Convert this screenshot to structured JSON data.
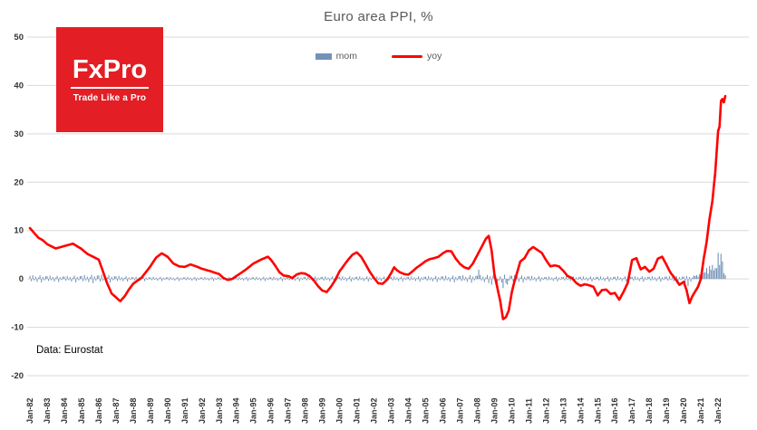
{
  "title": "Euro area PPI, %",
  "source_note": "Data: Eurostat",
  "logo": {
    "name": "FxPro",
    "tagline": "Trade Like a Pro",
    "bg_color": "#e31e24"
  },
  "legend": [
    {
      "label": "mom",
      "color": "#7292b8",
      "type": "bar"
    },
    {
      "label": "yoy",
      "color": "#ff0000",
      "type": "line"
    }
  ],
  "chart_data": {
    "type": "mixed-bar-line",
    "title": "Euro area PPI, %",
    "months_total": 486,
    "x_first_month": "Jan-82",
    "x_tick_every_months": 12,
    "x_tick_labels": [
      "Jan-82",
      "Jan-83",
      "Jan-84",
      "Jan-85",
      "Jan-86",
      "Jan-87",
      "Jan-88",
      "Jan-89",
      "Jan-90",
      "Jan-91",
      "Jan-92",
      "Jan-93",
      "Jan-94",
      "Jan-95",
      "Jan-96",
      "Jan-97",
      "Jan-98",
      "Jan-99",
      "Jan-00",
      "Jan-01",
      "Jan-02",
      "Jan-03",
      "Jan-04",
      "Jan-05",
      "Jan-06",
      "Jan-07",
      "Jan-08",
      "Jan-09",
      "Jan-10",
      "Jan-11",
      "Jan-12",
      "Jan-13",
      "Jan-14",
      "Jan-15",
      "Jan-16",
      "Jan-17",
      "Jan-18",
      "Jan-19",
      "Jan-20",
      "Jan-21",
      "Jan-22"
    ],
    "ylim": [
      -20,
      50
    ],
    "y_ticks": [
      50,
      40,
      30,
      20,
      10,
      0,
      -10,
      -20
    ],
    "grid_color": "#d9d9d9",
    "series": [
      {
        "name": "yoy",
        "type": "line",
        "color": "#ff0000",
        "anchors": [
          [
            0,
            10.5
          ],
          [
            3,
            9.5
          ],
          [
            6,
            8.5
          ],
          [
            9,
            8
          ],
          [
            12,
            7.2
          ],
          [
            18,
            6.3
          ],
          [
            24,
            6.8
          ],
          [
            30,
            7.3
          ],
          [
            36,
            6.2
          ],
          [
            40,
            5.2
          ],
          [
            44,
            4.6
          ],
          [
            48,
            4
          ],
          [
            51,
            1.5
          ],
          [
            54,
            -1
          ],
          [
            57,
            -3
          ],
          [
            60,
            -3.8
          ],
          [
            63,
            -4.6
          ],
          [
            66,
            -3.6
          ],
          [
            69,
            -2.2
          ],
          [
            72,
            -1
          ],
          [
            78,
            0.3
          ],
          [
            84,
            2.6
          ],
          [
            88,
            4.4
          ],
          [
            92,
            5.3
          ],
          [
            96,
            4.6
          ],
          [
            100,
            3.2
          ],
          [
            104,
            2.6
          ],
          [
            108,
            2.5
          ],
          [
            112,
            3
          ],
          [
            116,
            2.6
          ],
          [
            120,
            2.1
          ],
          [
            126,
            1.6
          ],
          [
            132,
            1
          ],
          [
            135,
            0.2
          ],
          [
            138,
            -0.2
          ],
          [
            141,
            0
          ],
          [
            144,
            0.6
          ],
          [
            150,
            1.8
          ],
          [
            156,
            3.2
          ],
          [
            162,
            4.1
          ],
          [
            166,
            4.6
          ],
          [
            168,
            4
          ],
          [
            171,
            2.8
          ],
          [
            174,
            1.4
          ],
          [
            177,
            0.7
          ],
          [
            180,
            0.6
          ],
          [
            183,
            0.2
          ],
          [
            186,
            0.9
          ],
          [
            189,
            1.2
          ],
          [
            192,
            1.1
          ],
          [
            195,
            0.6
          ],
          [
            198,
            -0.3
          ],
          [
            201,
            -1.5
          ],
          [
            204,
            -2.4
          ],
          [
            207,
            -2.7
          ],
          [
            210,
            -1.6
          ],
          [
            213,
            -0.2
          ],
          [
            216,
            1.6
          ],
          [
            219,
            2.8
          ],
          [
            222,
            4
          ],
          [
            225,
            5
          ],
          [
            228,
            5.5
          ],
          [
            231,
            4.6
          ],
          [
            234,
            3.1
          ],
          [
            237,
            1.5
          ],
          [
            240,
            0.2
          ],
          [
            243,
            -0.9
          ],
          [
            246,
            -1
          ],
          [
            249,
            -0.2
          ],
          [
            252,
            1.2
          ],
          [
            254,
            2.4
          ],
          [
            256,
            1.8
          ],
          [
            258,
            1.4
          ],
          [
            261,
            1
          ],
          [
            264,
            0.9
          ],
          [
            267,
            1.6
          ],
          [
            270,
            2.4
          ],
          [
            273,
            3
          ],
          [
            276,
            3.7
          ],
          [
            279,
            4.1
          ],
          [
            282,
            4.3
          ],
          [
            285,
            4.6
          ],
          [
            288,
            5.3
          ],
          [
            291,
            5.8
          ],
          [
            294,
            5.7
          ],
          [
            297,
            4.2
          ],
          [
            300,
            3.1
          ],
          [
            303,
            2.4
          ],
          [
            306,
            2.1
          ],
          [
            309,
            3.2
          ],
          [
            312,
            4.9
          ],
          [
            315,
            6.6
          ],
          [
            318,
            8.3
          ],
          [
            320,
            8.9
          ],
          [
            322,
            6
          ],
          [
            324,
            0.9
          ],
          [
            326,
            -1.8
          ],
          [
            328,
            -4.5
          ],
          [
            330,
            -8.3
          ],
          [
            332,
            -7.9
          ],
          [
            334,
            -6.5
          ],
          [
            336,
            -2.9
          ],
          [
            338,
            -0.5
          ],
          [
            340,
            1.5
          ],
          [
            342,
            3.6
          ],
          [
            345,
            4.3
          ],
          [
            348,
            5.9
          ],
          [
            351,
            6.6
          ],
          [
            354,
            6
          ],
          [
            357,
            5.4
          ],
          [
            360,
            3.9
          ],
          [
            363,
            2.6
          ],
          [
            366,
            2.8
          ],
          [
            369,
            2.6
          ],
          [
            372,
            1.7
          ],
          [
            375,
            0.6
          ],
          [
            378,
            0.2
          ],
          [
            381,
            -0.8
          ],
          [
            384,
            -1.4
          ],
          [
            387,
            -1.1
          ],
          [
            390,
            -1.3
          ],
          [
            393,
            -1.6
          ],
          [
            396,
            -3.4
          ],
          [
            399,
            -2.3
          ],
          [
            402,
            -2.2
          ],
          [
            405,
            -3.1
          ],
          [
            408,
            -2.9
          ],
          [
            411,
            -4.3
          ],
          [
            414,
            -2.7
          ],
          [
            417,
            -0.8
          ],
          [
            420,
            3.9
          ],
          [
            423,
            4.3
          ],
          [
            426,
            2
          ],
          [
            429,
            2.5
          ],
          [
            432,
            1.5
          ],
          [
            435,
            2.1
          ],
          [
            438,
            4.2
          ],
          [
            441,
            4.6
          ],
          [
            444,
            2.9
          ],
          [
            447,
            1.2
          ],
          [
            450,
            0.1
          ],
          [
            453,
            -1.2
          ],
          [
            456,
            -0.6
          ],
          [
            458,
            -2.3
          ],
          [
            460,
            -5
          ],
          [
            462,
            -3.6
          ],
          [
            464,
            -2.6
          ],
          [
            466,
            -1.6
          ],
          [
            468,
            0
          ],
          [
            470,
            4.3
          ],
          [
            472,
            7.6
          ],
          [
            474,
            12.4
          ],
          [
            476,
            16.1
          ],
          [
            478,
            21.9
          ],
          [
            480,
            30.6
          ],
          [
            481,
            31.5
          ],
          [
            482,
            36.8
          ],
          [
            483,
            37.2
          ],
          [
            484,
            36.5
          ],
          [
            485,
            37.8
          ]
        ]
      },
      {
        "name": "mom",
        "type": "bar",
        "color": "#7292b8",
        "pattern12": [
          0.4,
          -0.3,
          0.5,
          -0.2,
          0.3,
          -0.4,
          0.2,
          0.5,
          -0.5,
          0.3,
          -0.2,
          0.4
        ],
        "scale_anchors": [
          [
            0,
            1.6
          ],
          [
            24,
            1.2
          ],
          [
            48,
            1.8
          ],
          [
            72,
            0.9
          ],
          [
            120,
            0.8
          ],
          [
            180,
            0.9
          ],
          [
            216,
            1.1
          ],
          [
            264,
            1.0
          ],
          [
            312,
            1.6
          ],
          [
            330,
            1.8
          ],
          [
            360,
            1.0
          ],
          [
            420,
            1.1
          ],
          [
            456,
            1.2
          ],
          [
            462,
            1.4
          ]
        ],
        "overrides": [
          [
            313,
            1.9
          ],
          [
            322,
            -1.2
          ],
          [
            326,
            -1.6
          ],
          [
            330,
            -1.9
          ],
          [
            333,
            -1.2
          ],
          [
            457,
            -1.1
          ],
          [
            459,
            -1.5
          ]
        ],
        "tail_start": 464,
        "tail": [
          0.6,
          0.8,
          0.5,
          1.0,
          0.5,
          1.1,
          1.3,
          1.4,
          2.3,
          1.1,
          2.7,
          1.9,
          2.9,
          1.8,
          2.3,
          2.2,
          5.4,
          2.9,
          5.2,
          3.6,
          1.2,
          0.8
        ]
      }
    ]
  }
}
